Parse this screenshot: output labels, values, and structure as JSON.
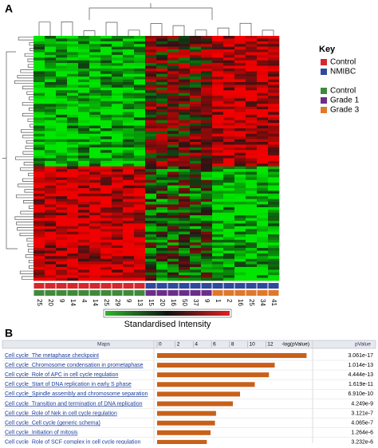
{
  "panel_a": {
    "label": "A",
    "key_title": "Key",
    "key": [
      {
        "name": "Control",
        "color": "#d7262e"
      },
      {
        "name": "NMIBC",
        "color": "#2e4a9e"
      },
      {
        "name": "Control",
        "color": "#3f8a3a"
      },
      {
        "name": "Grade 1",
        "color": "#6b2d8a"
      },
      {
        "name": "Grade 3",
        "color": "#e0782a"
      }
    ],
    "samples": [
      {
        "label": "25",
        "colors": [
          "#d7262e",
          "#3f8a3a"
        ]
      },
      {
        "label": "20",
        "colors": [
          "#d7262e",
          "#3f8a3a"
        ]
      },
      {
        "label": "9",
        "colors": [
          "#d7262e",
          "#3f8a3a"
        ]
      },
      {
        "label": "14",
        "colors": [
          "#d7262e",
          "#3f8a3a"
        ]
      },
      {
        "label": "4",
        "colors": [
          "#d7262e",
          "#3f8a3a"
        ]
      },
      {
        "label": "14",
        "colors": [
          "#d7262e",
          "#3f8a3a"
        ]
      },
      {
        "label": "25",
        "colors": [
          "#d7262e",
          "#3f8a3a"
        ]
      },
      {
        "label": "29",
        "colors": [
          "#d7262e",
          "#3f8a3a"
        ]
      },
      {
        "label": "9",
        "colors": [
          "#d7262e",
          "#3f8a3a"
        ]
      },
      {
        "label": "13",
        "colors": [
          "#d7262e",
          "#3f8a3a"
        ]
      },
      {
        "label": "15",
        "colors": [
          "#2e4a9e",
          "#6b2d8a"
        ]
      },
      {
        "label": "20",
        "colors": [
          "#2e4a9e",
          "#6b2d8a"
        ]
      },
      {
        "label": "16",
        "colors": [
          "#2e4a9e",
          "#6b2d8a"
        ]
      },
      {
        "label": "50",
        "colors": [
          "#2e4a9e",
          "#6b2d8a"
        ]
      },
      {
        "label": "37",
        "colors": [
          "#2e4a9e",
          "#6b2d8a"
        ]
      },
      {
        "label": "9",
        "colors": [
          "#2e4a9e",
          "#6b2d8a"
        ]
      },
      {
        "label": "1",
        "colors": [
          "#2e4a9e",
          "#e0782a"
        ]
      },
      {
        "label": "2",
        "colors": [
          "#2e4a9e",
          "#e0782a"
        ]
      },
      {
        "label": "16",
        "colors": [
          "#2e4a9e",
          "#e0782a"
        ]
      },
      {
        "label": "25",
        "colors": [
          "#2e4a9e",
          "#e0782a"
        ]
      },
      {
        "label": "34",
        "colors": [
          "#2e4a9e",
          "#e0782a"
        ]
      },
      {
        "label": "41",
        "colors": [
          "#2e4a9e",
          "#e0782a"
        ]
      }
    ],
    "colorbar_label": "Standardised Intensity"
  },
  "panel_b_label": "B",
  "chart_data": {
    "type": "bar",
    "orientation": "horizontal",
    "category_header": "Maps",
    "value_header": "-log(pValue)",
    "pvalue_header": "pValue",
    "categories": [
      "Cell cycle_The metaphase checkpoint",
      "Cell cycle_Chromosome condensation in prometaphase",
      "Cell cycle_Role of APC in cell cycle regulation",
      "Cell cycle_Start of DNA replication in early S phase",
      "Cell cycle_Spindle assembly and chromosome separation",
      "Cell cycle_Transition and termination of DNA replication",
      "Cell cycle_Role of Nek in cell cycle regulation",
      "Cell cycle_Cell cycle (generic schema)",
      "Cell cycle_Initiation of mitosis",
      "Cell cycle_Role of SCF complex in cell cycle regulation"
    ],
    "values": [
      16.51,
      12.99,
      12.35,
      10.79,
      9.16,
      8.37,
      6.51,
      6.39,
      5.9,
      5.49
    ],
    "pvalues": [
      "3.061e-17",
      "1.014e-13",
      "4.444e-13",
      "1.619e-11",
      "6.910e-10",
      "4.249e-9",
      "3.121e-7",
      "4.065e-7",
      "1.264e-6",
      "3.232e-6"
    ],
    "color": "#c8601a",
    "xlim": [
      0,
      17
    ],
    "xticks": [
      0,
      2,
      4,
      6,
      8,
      10,
      12
    ]
  }
}
